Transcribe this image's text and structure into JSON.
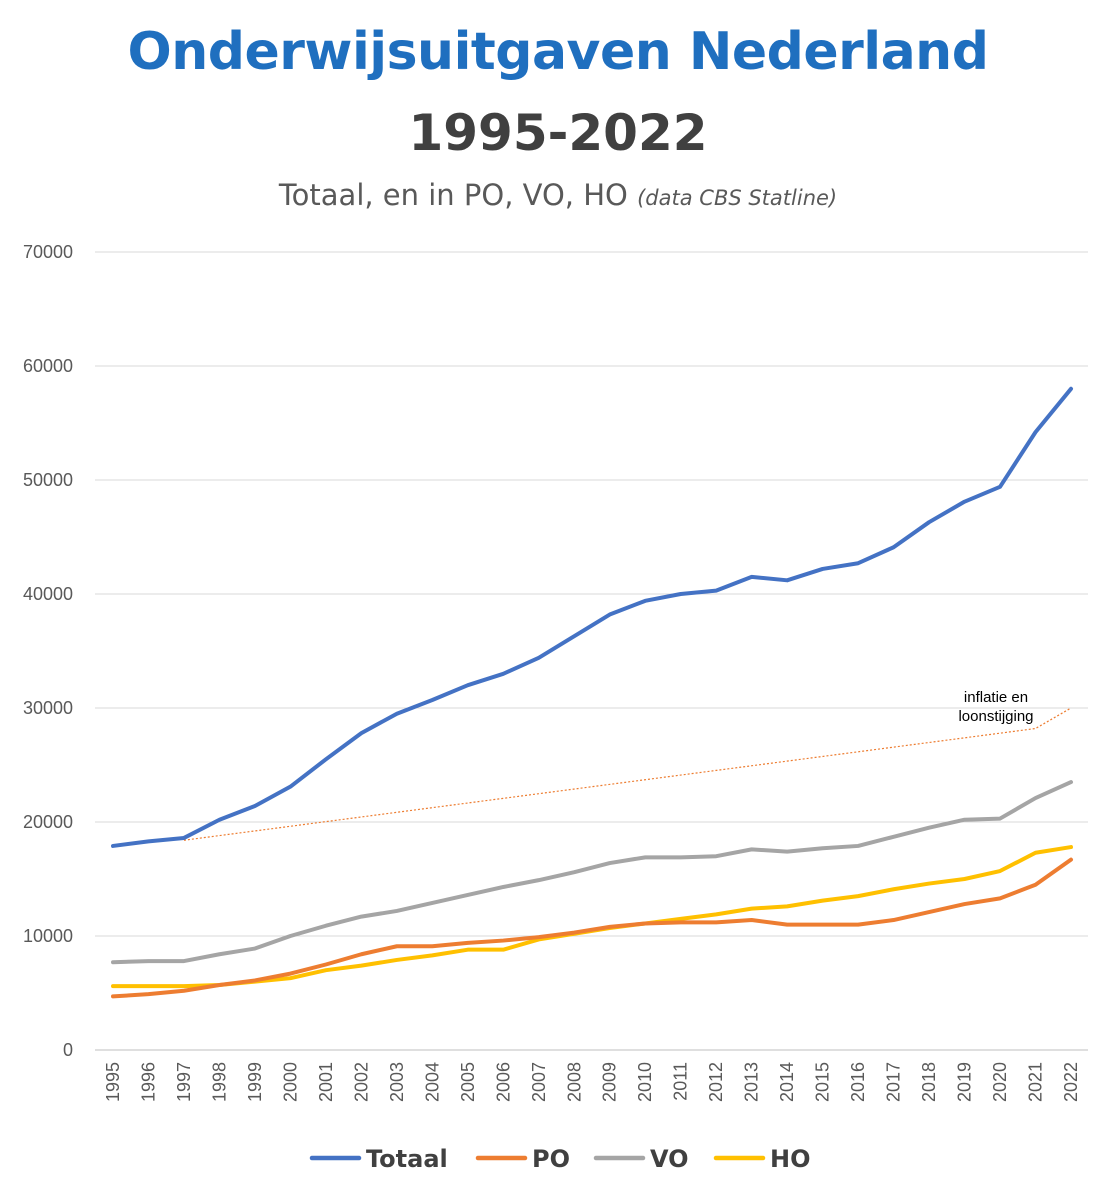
{
  "header": {
    "title": "Onderwijsuitgaven Nederland",
    "years": "1995-2022",
    "subtitle_main": "Totaal, en in PO, VO, HO",
    "subtitle_source": "(data CBS Statline)"
  },
  "chart_data": {
    "type": "line",
    "title": "Onderwijsuitgaven Nederland",
    "ylim": [
      0,
      70000
    ],
    "yticks": [
      0,
      10000,
      20000,
      30000,
      40000,
      50000,
      60000,
      70000
    ],
    "grid": true,
    "legend_placement": "bottom",
    "categories": [
      "1995",
      "1996",
      "1997",
      "1998",
      "1999",
      "2000",
      "2001",
      "2002",
      "2003",
      "2004",
      "2005",
      "2006",
      "2007",
      "2008",
      "2009",
      "2010",
      "2011",
      "2012",
      "2013",
      "2014",
      "2015",
      "2016",
      "2017",
      "2018",
      "2019",
      "2020",
      "2021",
      "2022"
    ],
    "series": [
      {
        "name": "Totaal",
        "color": "#4472c4",
        "values": [
          17900,
          18300,
          18600,
          20200,
          21400,
          23100,
          25500,
          27800,
          29500,
          30700,
          32000,
          33000,
          34400,
          36300,
          38200,
          39400,
          40000,
          40300,
          41500,
          41200,
          42200,
          42700,
          44100,
          46300,
          48100,
          49400,
          54200,
          58000
        ]
      },
      {
        "name": "PO",
        "color": "#ed7d31",
        "values": [
          4700,
          4900,
          5200,
          5700,
          6100,
          6700,
          7500,
          8400,
          9100,
          9100,
          9400,
          9600,
          9900,
          10300,
          10800,
          11100,
          11200,
          11200,
          11400,
          11000,
          11000,
          11000,
          11400,
          12100,
          12800,
          13300,
          14500,
          16700
        ]
      },
      {
        "name": "VO",
        "color": "#a5a5a5",
        "values": [
          7700,
          7800,
          7800,
          8400,
          8900,
          10000,
          10900,
          11700,
          12200,
          12900,
          13600,
          14300,
          14900,
          15600,
          16400,
          16900,
          16900,
          17000,
          17600,
          17400,
          17700,
          17900,
          18700,
          19500,
          20200,
          20300,
          22100,
          23500
        ]
      },
      {
        "name": "HO",
        "color": "#ffc000",
        "values": [
          5600,
          5600,
          5600,
          5700,
          6000,
          6300,
          7000,
          7400,
          7900,
          8300,
          8800,
          8800,
          9700,
          10200,
          10700,
          11100,
          11500,
          11900,
          12400,
          12600,
          13100,
          13500,
          14100,
          14600,
          15000,
          15700,
          17300,
          17800
        ]
      }
    ],
    "reference_line": {
      "label_line1": "inflatie en",
      "label_line2": "loonstijging",
      "color": "#ed7d31",
      "points": [
        [
          "1997",
          18400
        ],
        [
          "2021",
          28200
        ],
        [
          "2022",
          30000
        ]
      ]
    }
  }
}
